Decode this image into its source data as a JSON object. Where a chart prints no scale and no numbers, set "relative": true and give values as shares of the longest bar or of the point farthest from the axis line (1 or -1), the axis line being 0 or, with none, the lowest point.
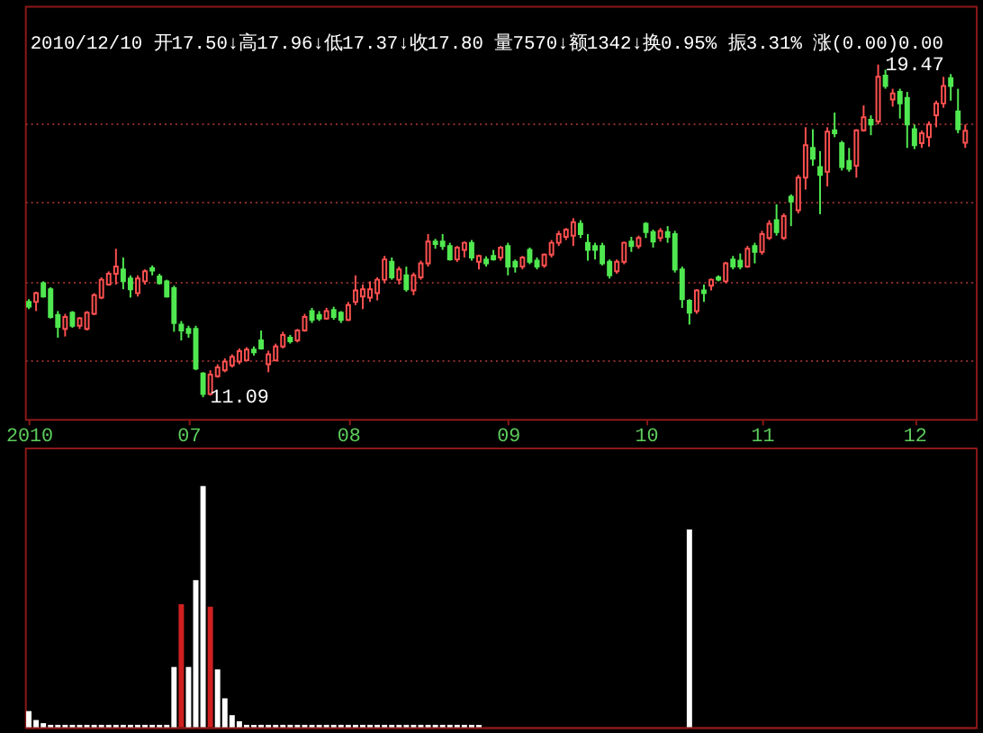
{
  "chart_data": [
    {
      "type": "candlestick",
      "subtitle": "2010/12/10 开17.50↓高17.96↓低17.37↓收17.80 量7570↓额1342↓换0.95% 振3.31% 涨(0.00)0.00",
      "categories": [
        "2010",
        null,
        null,
        null,
        null,
        null,
        null,
        null,
        null,
        null,
        null,
        null,
        null,
        null,
        null,
        null,
        null,
        null,
        null,
        null,
        null,
        null,
        "07",
        null,
        null,
        null,
        null,
        null,
        null,
        null,
        null,
        null,
        null,
        null,
        null,
        null,
        null,
        null,
        null,
        null,
        null,
        null,
        null,
        null,
        "08",
        null,
        null,
        null,
        null,
        null,
        null,
        null,
        null,
        null,
        null,
        null,
        null,
        null,
        null,
        null,
        null,
        null,
        null,
        null,
        null,
        null,
        "09",
        null,
        null,
        null,
        null,
        null,
        null,
        null,
        null,
        null,
        null,
        null,
        null,
        null,
        null,
        null,
        null,
        null,
        null,
        "10",
        null,
        null,
        null,
        null,
        null,
        null,
        null,
        null,
        null,
        null,
        null,
        null,
        null,
        null,
        null,
        "11",
        null,
        null,
        null,
        null,
        null,
        null,
        null,
        null,
        null,
        null,
        null,
        null,
        null,
        null,
        null,
        null,
        null,
        null,
        null,
        null,
        "12",
        null,
        null,
        null,
        null,
        null,
        null,
        null
      ],
      "ohlc": [
        [
          13.49,
          13.56,
          13.31,
          13.37
        ],
        [
          13.49,
          13.75,
          13.26,
          13.71
        ],
        [
          13.96,
          14.01,
          13.6,
          13.63
        ],
        [
          13.81,
          13.86,
          13.07,
          13.11
        ],
        [
          13.16,
          13.26,
          12.59,
          12.86
        ],
        [
          12.81,
          13.19,
          12.62,
          13.11
        ],
        [
          13.22,
          13.26,
          12.84,
          12.89
        ],
        [
          12.89,
          13.11,
          12.81,
          13.08
        ],
        [
          12.81,
          13.26,
          12.77,
          13.22
        ],
        [
          13.19,
          13.71,
          13.16,
          13.66
        ],
        [
          13.6,
          14.11,
          13.56,
          14.05
        ],
        [
          13.93,
          14.26,
          13.9,
          14.2
        ],
        [
          14.2,
          14.83,
          13.93,
          14.38
        ],
        [
          14.31,
          14.61,
          13.81,
          14.01
        ],
        [
          14.08,
          14.16,
          13.6,
          13.81
        ],
        [
          13.71,
          14.16,
          13.63,
          14.08
        ],
        [
          14.01,
          14.31,
          13.93,
          14.26
        ],
        [
          14.34,
          14.41,
          14.16,
          14.28
        ],
        [
          14.13,
          14.2,
          13.93,
          13.96
        ],
        [
          14.01,
          14.05,
          13.6,
          13.63
        ],
        [
          13.84,
          13.9,
          12.74,
          12.96
        ],
        [
          12.92,
          13.01,
          12.52,
          12.77
        ],
        [
          12.81,
          12.89,
          12.59,
          12.71
        ],
        [
          12.81,
          12.89,
          11.77,
          11.81
        ],
        [
          11.69,
          11.72,
          11.09,
          11.17
        ],
        [
          11.17,
          11.77,
          11.13,
          11.66
        ],
        [
          11.62,
          11.92,
          11.58,
          11.84
        ],
        [
          11.77,
          12.07,
          11.72,
          11.99
        ],
        [
          11.89,
          12.17,
          11.84,
          12.11
        ],
        [
          11.99,
          12.32,
          11.92,
          12.25
        ],
        [
          12.02,
          12.35,
          11.99,
          12.29
        ],
        [
          12.29,
          12.37,
          12.14,
          12.22
        ],
        [
          12.52,
          12.77,
          12.29,
          12.32
        ],
        [
          11.92,
          12.26,
          11.72,
          12.17
        ],
        [
          12.02,
          12.44,
          11.99,
          12.37
        ],
        [
          12.37,
          12.74,
          12.32,
          12.66
        ],
        [
          12.59,
          12.66,
          12.44,
          12.5
        ],
        [
          12.52,
          12.81,
          12.47,
          12.77
        ],
        [
          12.77,
          13.19,
          12.74,
          13.11
        ],
        [
          13.26,
          13.34,
          12.96,
          13.04
        ],
        [
          13.16,
          13.26,
          13.01,
          13.07
        ],
        [
          13.07,
          13.34,
          13.04,
          13.26
        ],
        [
          13.29,
          13.37,
          13.04,
          13.11
        ],
        [
          13.22,
          13.26,
          12.96,
          13.04
        ],
        [
          13.04,
          13.49,
          13.01,
          13.41
        ],
        [
          13.49,
          14.16,
          13.41,
          13.78
        ],
        [
          13.63,
          13.93,
          13.31,
          13.81
        ],
        [
          13.6,
          14.01,
          13.49,
          13.81
        ],
        [
          13.71,
          14.11,
          13.53,
          14.05
        ],
        [
          14.05,
          14.65,
          13.96,
          14.56
        ],
        [
          14.5,
          14.61,
          14.05,
          14.11
        ],
        [
          14.05,
          14.38,
          13.93,
          14.31
        ],
        [
          14.16,
          14.38,
          13.75,
          13.81
        ],
        [
          13.78,
          14.23,
          13.66,
          14.16
        ],
        [
          14.11,
          14.53,
          14.05,
          14.46
        ],
        [
          14.46,
          15.2,
          14.38,
          15.01
        ],
        [
          15.01,
          15.08,
          14.83,
          14.95
        ],
        [
          15.01,
          15.2,
          14.8,
          14.9
        ],
        [
          14.9,
          14.98,
          14.53,
          14.56
        ],
        [
          14.56,
          14.9,
          14.5,
          14.86
        ],
        [
          14.8,
          15.01,
          14.61,
          14.98
        ],
        [
          14.98,
          15.05,
          14.53,
          14.61
        ],
        [
          14.5,
          14.68,
          14.31,
          14.65
        ],
        [
          14.56,
          14.64,
          14.38,
          14.46
        ],
        [
          14.65,
          14.8,
          14.53,
          14.56
        ],
        [
          14.61,
          14.9,
          14.53,
          14.86
        ],
        [
          14.9,
          14.98,
          14.16,
          14.38
        ],
        [
          14.5,
          14.56,
          14.23,
          14.38
        ],
        [
          14.38,
          14.65,
          14.31,
          14.61
        ],
        [
          14.8,
          14.86,
          14.44,
          14.5
        ],
        [
          14.53,
          14.61,
          14.31,
          14.38
        ],
        [
          14.41,
          14.71,
          14.35,
          14.68
        ],
        [
          14.68,
          15.05,
          14.61,
          14.98
        ],
        [
          14.98,
          15.28,
          14.9,
          15.2
        ],
        [
          15.13,
          15.35,
          15.05,
          15.31
        ],
        [
          15.16,
          15.6,
          14.9,
          15.5
        ],
        [
          15.46,
          15.55,
          15.1,
          15.2
        ],
        [
          14.98,
          15.2,
          14.53,
          14.8
        ],
        [
          14.9,
          14.98,
          14.56,
          14.8
        ],
        [
          14.9,
          14.98,
          14.41,
          14.46
        ],
        [
          14.5,
          14.56,
          14.08,
          14.16
        ],
        [
          14.26,
          14.56,
          14.2,
          14.5
        ],
        [
          14.5,
          15.01,
          14.44,
          14.98
        ],
        [
          15.01,
          15.13,
          14.75,
          14.9
        ],
        [
          14.9,
          15.16,
          14.83,
          15.1
        ],
        [
          15.46,
          15.5,
          15.1,
          15.25
        ],
        [
          15.25,
          15.31,
          14.86,
          15.01
        ],
        [
          15.1,
          15.35,
          15.01,
          15.28
        ],
        [
          15.25,
          15.4,
          14.98,
          15.13
        ],
        [
          15.2,
          15.28,
          14.23,
          14.31
        ],
        [
          14.31,
          14.38,
          13.34,
          13.56
        ],
        [
          13.52,
          13.56,
          12.92,
          13.22
        ],
        [
          13.26,
          13.81,
          13.19,
          13.78
        ],
        [
          13.78,
          13.93,
          13.49,
          13.71
        ],
        [
          13.9,
          14.08,
          13.78,
          14.05
        ],
        [
          14.11,
          14.16,
          14.01,
          14.05
        ],
        [
          14.01,
          14.5,
          13.96,
          14.46
        ],
        [
          14.56,
          14.65,
          14.31,
          14.38
        ],
        [
          14.53,
          14.71,
          14.31,
          14.38
        ],
        [
          14.38,
          14.9,
          14.35,
          14.83
        ],
        [
          14.9,
          14.98,
          14.46,
          14.75
        ],
        [
          14.75,
          15.28,
          14.68,
          15.2
        ],
        [
          15.1,
          15.55,
          15.05,
          15.46
        ],
        [
          15.55,
          15.95,
          15.16,
          15.25
        ],
        [
          15.1,
          15.72,
          15.05,
          15.65
        ],
        [
          16.14,
          16.2,
          15.4,
          16.02
        ],
        [
          15.8,
          16.69,
          15.72,
          16.62
        ],
        [
          16.62,
          17.89,
          16.32,
          17.44
        ],
        [
          17.37,
          17.84,
          16.92,
          17.1
        ],
        [
          16.89,
          17.29,
          15.7,
          16.69
        ],
        [
          16.77,
          17.89,
          16.4,
          17.78
        ],
        [
          17.81,
          18.26,
          17.64,
          17.74
        ],
        [
          17.49,
          17.55,
          16.8,
          16.89
        ],
        [
          17.04,
          17.37,
          16.77,
          16.84
        ],
        [
          16.92,
          17.84,
          16.62,
          17.81
        ],
        [
          17.81,
          18.44,
          17.78,
          18.14
        ],
        [
          18.08,
          18.19,
          17.69,
          17.96
        ],
        [
          18.04,
          19.47,
          17.96,
          19.16
        ],
        [
          19.19,
          19.34,
          18.86,
          18.93
        ],
        [
          18.59,
          18.86,
          18.41,
          18.74
        ],
        [
          18.78,
          18.86,
          18.11,
          18.49
        ],
        [
          18.63,
          18.78,
          17.37,
          17.96
        ],
        [
          17.84,
          17.96,
          17.34,
          17.44
        ],
        [
          17.49,
          17.81,
          17.37,
          17.74
        ],
        [
          17.64,
          18.04,
          17.4,
          17.96
        ],
        [
          18.19,
          18.56,
          17.89,
          18.49
        ],
        [
          18.49,
          19.16,
          18.38,
          18.93
        ],
        [
          19.13,
          19.23,
          18.56,
          18.93
        ],
        [
          18.29,
          18.86,
          17.74,
          17.84
        ],
        [
          17.5,
          17.96,
          17.37,
          17.8
        ]
      ],
      "colors": [
        "#50e850",
        "#ff5050",
        "#50e850",
        "#50e850",
        "#50e850",
        "#ff5050",
        "#50e850",
        "#ff5050",
        "#ff5050",
        "#ff5050",
        "#ff5050",
        "#ff5050",
        "#ff5050",
        "#50e850",
        "#50e850",
        "#ff5050",
        "#ff5050",
        "#50e850",
        "#50e850",
        "#50e850",
        "#50e850",
        "#50e850",
        "#50e850",
        "#50e850",
        "#50e850",
        "#ff5050",
        "#ff5050",
        "#ff5050",
        "#ff5050",
        "#ff5050",
        "#ff5050",
        "#50e850",
        "#50e850",
        "#ff5050",
        "#ff5050",
        "#ff5050",
        "#50e850",
        "#ff5050",
        "#ff5050",
        "#50e850",
        "#50e850",
        "#ff5050",
        "#50e850",
        "#50e850",
        "#ff5050",
        "#ff5050",
        "#ff5050",
        "#ff5050",
        "#ff5050",
        "#ff5050",
        "#50e850",
        "#ff5050",
        "#50e850",
        "#ff5050",
        "#ff5050",
        "#ff5050",
        "#50e850",
        "#50e850",
        "#50e850",
        "#ff5050",
        "#ff5050",
        "#50e850",
        "#ff5050",
        "#50e850",
        "#50e850",
        "#ff5050",
        "#50e850",
        "#50e850",
        "#ff5050",
        "#50e850",
        "#50e850",
        "#ff5050",
        "#ff5050",
        "#ff5050",
        "#ff5050",
        "#ff5050",
        "#50e850",
        "#50e850",
        "#50e850",
        "#50e850",
        "#50e850",
        "#ff5050",
        "#ff5050",
        "#50e850",
        "#ff5050",
        "#50e850",
        "#50e850",
        "#ff5050",
        "#50e850",
        "#50e850",
        "#50e850",
        "#50e850",
        "#ff5050",
        "#50e850",
        "#ff5050",
        "#50e850",
        "#ff5050",
        "#50e850",
        "#50e850",
        "#ff5050",
        "#50e850",
        "#ff5050",
        "#ff5050",
        "#50e850",
        "#ff5050",
        "#50e850",
        "#ff5050",
        "#ff5050",
        "#50e850",
        "#50e850",
        "#ff5050",
        "#50e850",
        "#50e850",
        "#50e850",
        "#ff5050",
        "#ff5050",
        "#50e850",
        "#ff5050",
        "#50e850",
        "#ff5050",
        "#50e850",
        "#50e850",
        "#50e850",
        "#ff5050",
        "#ff5050",
        "#ff5050",
        "#ff5050",
        "#50e850",
        "#50e850",
        "#ff5050"
      ],
      "ylim": [
        10.54,
        20.95
      ],
      "yticks": [
        {
          "value": 12,
          "label": null
        },
        {
          "value": 14,
          "label": null
        },
        {
          "value": 16,
          "label": null
        },
        {
          "value": 18,
          "label": null
        }
      ],
      "grid": "y",
      "tick_labels": "x",
      "annotations": [
        "19.47",
        "11.09"
      ]
    },
    {
      "type": "bar",
      "relative": true,
      "categories": [
        "2010",
        null,
        null,
        null,
        null,
        null,
        null,
        null,
        null,
        null,
        null,
        null,
        null,
        null,
        null,
        null,
        null,
        null,
        null,
        null,
        null,
        null,
        "07",
        null,
        null,
        null,
        null,
        null,
        null,
        null,
        null,
        null,
        null,
        null,
        null,
        null,
        null,
        null,
        null,
        null,
        null,
        null,
        null,
        null,
        "08",
        null,
        null,
        null,
        null,
        null,
        null,
        null,
        null,
        null,
        null,
        null,
        null,
        null,
        null,
        null,
        null,
        null,
        null,
        null,
        null,
        null,
        "09",
        null,
        null,
        null,
        null,
        null,
        null,
        null,
        null,
        null,
        null,
        null,
        null,
        null,
        null,
        null,
        null,
        null,
        null,
        "10",
        null,
        null,
        null,
        null,
        null,
        null,
        null,
        null,
        null,
        null,
        null,
        null,
        null,
        null,
        null,
        "11",
        null,
        null,
        null,
        null,
        null,
        null,
        null,
        null,
        null,
        null,
        null,
        null,
        null,
        null,
        null,
        null,
        null,
        null,
        null,
        null,
        "12",
        null,
        null,
        null,
        null,
        null,
        null,
        null
      ],
      "values": [
        0.067,
        0.03,
        0.017,
        0.01,
        0.01,
        0.01,
        0.01,
        0.01,
        0.01,
        0.01,
        0.01,
        0.01,
        0.01,
        0.01,
        0.01,
        0.01,
        0.01,
        0.01,
        0.01,
        0.01,
        0.25,
        0.51,
        0.25,
        0.61,
        1,
        0.5,
        0.24,
        0.12,
        0.05,
        0.025,
        0.01,
        0.01,
        0.01,
        0.01,
        0.01,
        0.01,
        0.01,
        0.01,
        0.01,
        0.01,
        0.01,
        0.01,
        0.01,
        0.01,
        0.01,
        0.01,
        0.01,
        0.01,
        0.01,
        0.01,
        0.01,
        0.01,
        0.01,
        0.01,
        0.01,
        0.01,
        0.01,
        0.01,
        0.01,
        0.01,
        0.01,
        0.01,
        0.01,
        null,
        null,
        null,
        null,
        null,
        null,
        null,
        null,
        null,
        null,
        null,
        null,
        null,
        null,
        null,
        null,
        null,
        null,
        null,
        null,
        null,
        null,
        null,
        null,
        null,
        null,
        null,
        null,
        0.82,
        null,
        null,
        null,
        null,
        null,
        null,
        null,
        null,
        null,
        null,
        null,
        null,
        null,
        null,
        null,
        null,
        null,
        null,
        null,
        null,
        null,
        null,
        null,
        null,
        null,
        null,
        null,
        null,
        null,
        null,
        null,
        null,
        null,
        null,
        null,
        null,
        null,
        null
      ],
      "colors": [
        "#ffffff",
        "#ffffff",
        "#ffffff",
        "#ffffff",
        "#ffffff",
        "#ffffff",
        "#ffffff",
        "#ffffff",
        "#ffffff",
        "#ffffff",
        "#ffffff",
        "#ffffff",
        "#ffffff",
        "#ffffff",
        "#ffffff",
        "#ffffff",
        "#ffffff",
        "#ffffff",
        "#ffffff",
        "#ffffff",
        "#ffffff",
        "#d02020",
        "#ffffff",
        "#ffffff",
        "#ffffff",
        "#d02020",
        "#ffffff",
        "#ffffff",
        "#ffffff",
        "#ffffff",
        "#ffffff",
        "#ffffff",
        "#ffffff",
        "#ffffff",
        "#ffffff",
        "#ffffff",
        "#ffffff",
        "#ffffff",
        "#ffffff",
        "#ffffff",
        "#ffffff",
        "#ffffff",
        "#ffffff",
        "#ffffff",
        "#ffffff",
        "#ffffff",
        "#ffffff",
        "#ffffff",
        "#ffffff",
        "#ffffff",
        "#ffffff",
        "#ffffff",
        "#ffffff",
        "#ffffff",
        "#ffffff",
        "#ffffff",
        "#ffffff",
        "#ffffff",
        "#ffffff",
        "#ffffff",
        "#ffffff",
        "#ffffff",
        "#ffffff",
        "#ffffff",
        "#ffffff",
        "#ffffff",
        "#ffffff",
        "#ffffff",
        "#ffffff",
        "#ffffff",
        "#ffffff",
        "#ffffff",
        "#ffffff",
        "#ffffff",
        "#ffffff",
        "#ffffff",
        "#ffffff",
        "#ffffff",
        "#ffffff",
        "#ffffff",
        "#ffffff",
        "#ffffff",
        "#ffffff",
        "#ffffff",
        "#ffffff",
        "#ffffff",
        "#ffffff",
        "#ffffff",
        "#ffffff",
        "#ffffff",
        "#ffffff",
        "#ffffff",
        "#ffffff",
        "#ffffff",
        "#ffffff",
        "#ffffff",
        "#ffffff",
        "#ffffff",
        "#ffffff",
        "#ffffff",
        "#ffffff",
        "#ffffff",
        "#ffffff",
        "#ffffff",
        "#ffffff",
        "#ffffff",
        "#ffffff",
        "#ffffff",
        "#ffffff",
        "#ffffff",
        "#ffffff",
        "#ffffff",
        "#ffffff",
        "#ffffff",
        "#ffffff",
        "#ffffff",
        "#ffffff",
        "#ffffff",
        "#ffffff",
        "#ffffff",
        "#ffffff",
        "#ffffff",
        "#ffffff",
        "#ffffff",
        "#ffffff",
        "#ffffff",
        "#ffffff",
        "#ffffff",
        "#ffffff",
        "#ffffff"
      ],
      "tick_labels": false
    }
  ]
}
